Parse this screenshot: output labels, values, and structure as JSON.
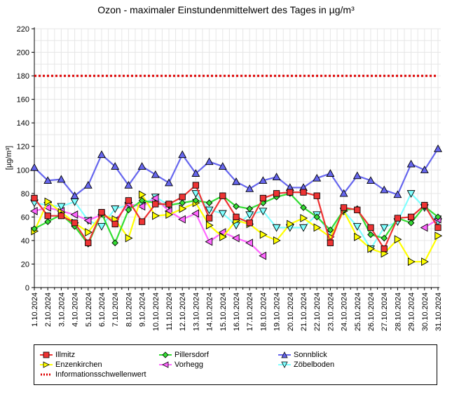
{
  "chart_data": {
    "type": "line",
    "title": "Ozon -  maximaler Einstundenmittelwert des Tages in µg/m³",
    "xlabel": "",
    "ylabel": "[µg/m³]",
    "ylim": [
      0,
      220
    ],
    "yticks": [
      0,
      20,
      40,
      60,
      80,
      100,
      120,
      140,
      160,
      180,
      200,
      220
    ],
    "grid": true,
    "legend_position": "bottom",
    "categories": [
      "1.10.2024",
      "2.10.2024",
      "3.10.2024",
      "4.10.2024",
      "5.10.2024",
      "6.10.2024",
      "7.10.2024",
      "8.10.2024",
      "9.10.2024",
      "10.10.2024",
      "11.10.2024",
      "12.10.2024",
      "13.10.2024",
      "14.10.2024",
      "15.10.2024",
      "16.10.2024",
      "17.10.2024",
      "18.10.2024",
      "19.10.2024",
      "20.10.2024",
      "21.10.2024",
      "22.10.2024",
      "23.10.2024",
      "24.10.2024",
      "25.10.2024",
      "26.10.2024",
      "27.10.2024",
      "28.10.2024",
      "29.10.2024",
      "30.10.2024",
      "31.10.2024"
    ],
    "series": [
      {
        "name": "Zöbelboden",
        "color": "#80ffff",
        "marker": "triangle-down",
        "values": [
          72,
          70,
          69,
          73,
          57,
          52,
          67,
          70,
          70,
          77,
          70,
          null,
          80,
          66,
          63,
          53,
          62,
          65,
          51,
          51,
          51,
          62,
          45,
          65,
          52,
          33,
          51,
          56,
          80,
          68,
          56
        ]
      },
      {
        "name": "Vorhegg",
        "color": "#ff66ff",
        "marker": "triangle-left",
        "values": [
          65,
          68,
          65,
          62,
          57,
          62,
          57,
          71,
          69,
          76,
          65,
          58,
          63,
          39,
          47,
          42,
          38,
          27,
          null,
          null,
          null,
          null,
          null,
          null,
          null,
          null,
          null,
          null,
          null,
          51,
          58
        ]
      },
      {
        "name": "Enzenkirchen",
        "color": "#ffff00",
        "marker": "triangle-right",
        "values": [
          48,
          73,
          64,
          55,
          47,
          62,
          58,
          42,
          79,
          61,
          62,
          67,
          72,
          53,
          43,
          57,
          54,
          45,
          40,
          54,
          59,
          51,
          43,
          65,
          43,
          33,
          29,
          41,
          22,
          22,
          44
        ]
      },
      {
        "name": "Pillersdorf",
        "color": "#33dd33",
        "marker": "diamond",
        "values": [
          50,
          56,
          62,
          52,
          37,
          63,
          38,
          66,
          74,
          72,
          70,
          72,
          74,
          72,
          78,
          69,
          67,
          72,
          77,
          80,
          68,
          60,
          49,
          66,
          67,
          45,
          42,
          59,
          55,
          69,
          60
        ]
      },
      {
        "name": "Sonnblick",
        "color": "#6666ee",
        "marker": "triangle-up",
        "values": [
          102,
          91,
          92,
          78,
          87,
          113,
          103,
          87,
          103,
          96,
          89,
          113,
          97,
          107,
          103,
          90,
          84,
          91,
          94,
          85,
          85,
          93,
          97,
          80,
          95,
          91,
          83,
          79,
          105,
          100,
          118
        ]
      },
      {
        "name": "Illmitz",
        "color": "#ee3333",
        "marker": "square",
        "values": [
          76,
          61,
          61,
          55,
          38,
          64,
          54,
          74,
          56,
          71,
          71,
          77,
          87,
          59,
          78,
          60,
          55,
          76,
          80,
          81,
          81,
          78,
          38,
          68,
          66,
          51,
          33,
          59,
          60,
          70,
          51
        ]
      }
    ],
    "reference_lines": [
      {
        "name": "Informationsschwellenwert",
        "value": 180,
        "color": "#dd0000",
        "style": "dotted"
      }
    ]
  },
  "legend": {
    "items": [
      {
        "label": "Illmitz"
      },
      {
        "label": "Pillersdorf"
      },
      {
        "label": "Sonnblick"
      },
      {
        "label": "Enzenkirchen"
      },
      {
        "label": "Vorhegg"
      },
      {
        "label": "Zöbelboden"
      },
      {
        "label": "Informationsschwellenwert"
      }
    ]
  }
}
